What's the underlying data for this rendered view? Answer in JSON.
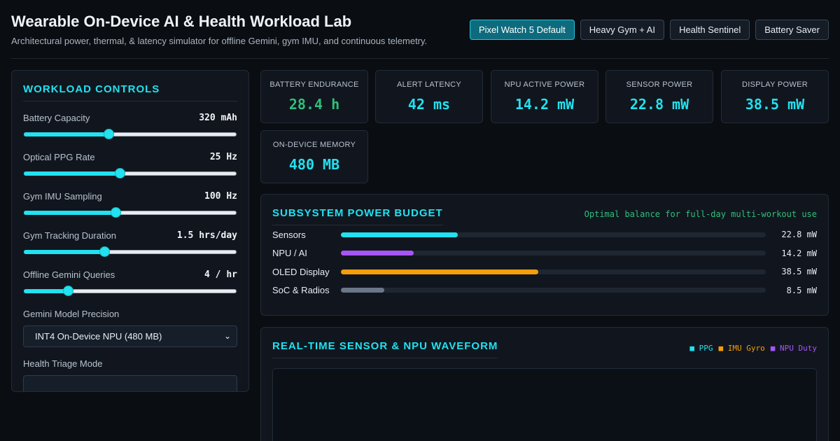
{
  "header": {
    "title": "Wearable On-Device AI & Health Workload Lab",
    "subtitle": "Architectural power, thermal, & latency simulator for offline Gemini, gym IMU, and continuous telemetry.",
    "presets": [
      "Pixel Watch 5 Default",
      "Heavy Gym + AI",
      "Health Sentinel",
      "Battery Saver"
    ],
    "active_preset": "Pixel Watch 5 Default"
  },
  "controls": {
    "title": "WORKLOAD CONTROLS",
    "sliders": [
      {
        "label": "Battery Capacity",
        "value": "320 mAh",
        "level": 0.4
      },
      {
        "label": "Optical PPG Rate",
        "value": "25 Hz",
        "level": 0.45
      },
      {
        "label": "Gym IMU Sampling",
        "value": "100 Hz",
        "level": 0.43
      },
      {
        "label": "Gym Tracking Duration",
        "value": "1.5 hrs/day",
        "level": 0.38
      },
      {
        "label": "Offline Gemini Queries",
        "value": "4 / hr",
        "level": 0.21
      }
    ],
    "precision_label": "Gemini Model Precision",
    "precision_value": "INT4 On-Device NPU (480 MB)",
    "triage_label": "Health Triage Mode"
  },
  "metrics": [
    {
      "label": "BATTERY ENDURANCE",
      "value": "28.4 h",
      "status": "good"
    },
    {
      "label": "ALERT LATENCY",
      "value": "42 ms",
      "status": "normal"
    },
    {
      "label": "NPU ACTIVE POWER",
      "value": "14.2 mW",
      "status": "normal"
    },
    {
      "label": "SENSOR POWER",
      "value": "22.8 mW",
      "status": "normal"
    },
    {
      "label": "DISPLAY POWER",
      "value": "38.5 mW",
      "status": "normal"
    },
    {
      "label": "ON-DEVICE MEMORY",
      "value": "480 MB",
      "status": "normal"
    }
  ],
  "budget": {
    "title": "SUBSYSTEM POWER BUDGET",
    "note": "Optimal balance for full-day multi-workout use",
    "max_mw": 83,
    "rows": [
      {
        "name": "Sensors",
        "value": "22.8 mW",
        "mw": 22.8,
        "color": "#22e1f0"
      },
      {
        "name": "NPU / AI",
        "value": "14.2 mW",
        "mw": 14.2,
        "color": "#a855f7"
      },
      {
        "name": "OLED Display",
        "value": "38.5 mW",
        "mw": 38.5,
        "color": "#f59e0b"
      },
      {
        "name": "SoC & Radios",
        "value": "8.5 mW",
        "mw": 8.5,
        "color": "#6b7688"
      }
    ]
  },
  "waveform": {
    "title": "REAL-TIME SENSOR & NPU WAVEFORM",
    "legend": [
      {
        "label": "■ PPG",
        "color": "#22e1f0"
      },
      {
        "label": "■ IMU Gyro",
        "color": "#f59e0b"
      },
      {
        "label": "■ NPU Duty",
        "color": "#a855f7"
      }
    ]
  },
  "colors": {
    "accent": "#22e1f0",
    "good": "#2fbf7a"
  },
  "icons": {
    "select_arrow": "chevron-down-icon"
  }
}
